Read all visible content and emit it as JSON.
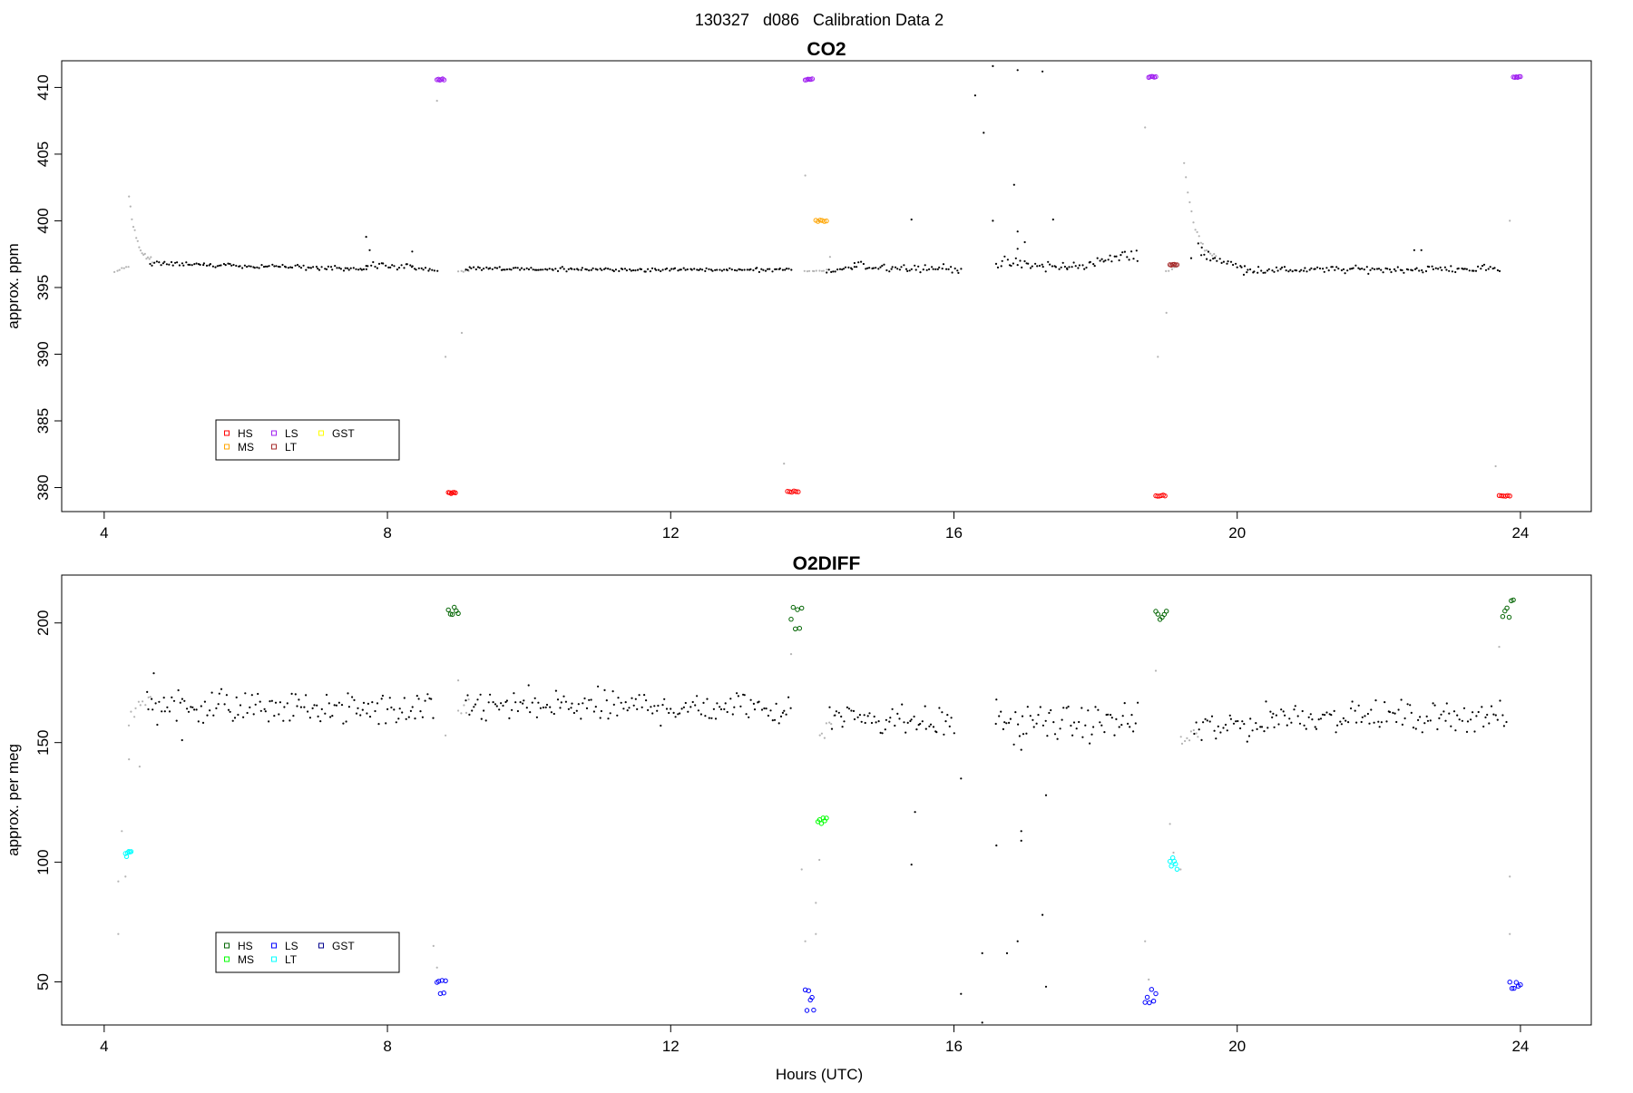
{
  "figure": {
    "title": "130327   d086   Calibration Data 2",
    "xlabel": "Hours (UTC)"
  },
  "chart_data": [
    {
      "type": "scatter",
      "title": "CO2",
      "ylabel": "approx. ppm",
      "xlabel": "",
      "xlim": [
        3.4,
        25.0
      ],
      "ylim": [
        378.2,
        412.0
      ],
      "xticks": [
        4,
        8,
        12,
        16,
        20,
        24
      ],
      "yticks": [
        380,
        385,
        390,
        395,
        400,
        405,
        410
      ],
      "grid": false,
      "legend": {
        "placement": "bottom-left",
        "entries": [
          {
            "label": "HS",
            "color": "#ff0000"
          },
          {
            "label": "MS",
            "color": "#ffa500"
          },
          {
            "label": "LS",
            "color": "#a020f0"
          },
          {
            "label": "LT",
            "color": "#a52a2a"
          },
          {
            "label": "GST",
            "color": "#ffff00"
          }
        ]
      },
      "ambient": {
        "color": "#000000",
        "segments": [
          [
            4.65,
            7.7,
            396.8,
            396.4,
            0.18
          ],
          [
            7.7,
            8.35,
            396.7,
            396.5,
            0.25
          ],
          [
            8.35,
            8.7,
            396.5,
            396.3,
            0.15
          ],
          [
            9.1,
            13.7,
            396.4,
            396.3,
            0.15
          ],
          [
            14.2,
            14.6,
            396.2,
            396.5,
            0.2
          ],
          [
            14.6,
            16.1,
            396.6,
            396.4,
            0.3
          ],
          [
            16.6,
            17.6,
            396.8,
            396.5,
            0.45
          ],
          [
            17.6,
            18.6,
            396.5,
            397.5,
            0.4
          ],
          [
            19.5,
            20.1,
            397.5,
            396.4,
            0.4
          ],
          [
            20.1,
            23.7,
            396.3,
            396.4,
            0.25
          ]
        ],
        "outliers": [
          [
            7.7,
            398.8
          ],
          [
            7.75,
            397.8
          ],
          [
            8.35,
            397.7
          ],
          [
            15.4,
            400.1
          ],
          [
            16.3,
            409.4
          ],
          [
            16.42,
            406.6
          ],
          [
            16.55,
            411.6
          ],
          [
            16.9,
            411.3
          ],
          [
            17.25,
            411.2
          ],
          [
            16.85,
            402.7
          ],
          [
            16.55,
            400.0
          ],
          [
            16.9,
            399.2
          ],
          [
            17.0,
            398.4
          ],
          [
            17.4,
            400.1
          ],
          [
            16.9,
            397.9
          ],
          [
            22.5,
            397.8
          ],
          [
            22.6,
            397.8
          ],
          [
            19.45,
            398.3
          ],
          [
            19.5,
            398.0
          ],
          [
            19.35,
            397.2
          ]
        ]
      },
      "transition": {
        "color": "#b4b4b4",
        "segments": [
          [
            4.15,
            4.35,
            396.2,
            396.6,
            0.1
          ],
          [
            9.0,
            9.15,
            396.2,
            396.3,
            0.1
          ],
          [
            13.9,
            14.2,
            396.2,
            396.3,
            0.1
          ],
          [
            19.0,
            19.15,
            396.2,
            396.6,
            0.1
          ]
        ],
        "decays": [
          [
            4.35,
            4.7,
            401.8,
            396.8
          ],
          [
            19.25,
            19.7,
            404.5,
            397.0
          ]
        ],
        "outliers": [
          [
            8.7,
            409.0
          ],
          [
            8.82,
            389.8
          ],
          [
            9.05,
            391.6
          ],
          [
            13.6,
            381.8
          ],
          [
            13.9,
            403.4
          ],
          [
            14.1,
            400.0
          ],
          [
            14.25,
            397.3
          ],
          [
            18.7,
            407.0
          ],
          [
            18.88,
            389.8
          ],
          [
            19.0,
            393.1
          ],
          [
            23.65,
            381.6
          ],
          [
            23.85,
            400.0
          ]
        ]
      },
      "calibrations": [
        {
          "tank": "LS",
          "x": [
            8.7,
            8.8
          ],
          "y": 410.6
        },
        {
          "tank": "HS",
          "x": [
            8.86,
            8.96
          ],
          "y": 379.6
        },
        {
          "tank": "HS",
          "x": [
            13.65,
            13.8
          ],
          "y": 379.7
        },
        {
          "tank": "LS",
          "x": [
            13.9,
            14.0
          ],
          "y": 410.6
        },
        {
          "tank": "MS",
          "x": [
            14.05,
            14.2
          ],
          "y": 400.0
        },
        {
          "tank": "LS",
          "x": [
            18.75,
            18.85
          ],
          "y": 410.8
        },
        {
          "tank": "HS",
          "x": [
            18.85,
            18.98
          ],
          "y": 379.4
        },
        {
          "tank": "LT",
          "x": [
            19.05,
            19.15
          ],
          "y": 396.7
        },
        {
          "tank": "HS",
          "x": [
            23.7,
            23.85
          ],
          "y": 379.4
        },
        {
          "tank": "LS",
          "x": [
            23.9,
            24.0
          ],
          "y": 410.8
        }
      ]
    },
    {
      "type": "scatter",
      "title": "O2DIFF",
      "ylabel": "approx. per meg",
      "xlabel": "Hours (UTC)",
      "xlim": [
        3.4,
        25.0
      ],
      "ylim": [
        32,
        220
      ],
      "xticks": [
        4,
        8,
        12,
        16,
        20,
        24
      ],
      "yticks": [
        50,
        100,
        150,
        200
      ],
      "grid": false,
      "legend": {
        "placement": "bottom-left",
        "entries": [
          {
            "label": "HS",
            "color": "#006400"
          },
          {
            "label": "MS",
            "color": "#00ff00"
          },
          {
            "label": "LS",
            "color": "#0000ff"
          },
          {
            "label": "LT",
            "color": "#00ffff"
          },
          {
            "label": "GST",
            "color": "#00008b"
          }
        ]
      },
      "ambient": {
        "color": "#000000",
        "segments": [
          [
            4.6,
            8.65,
            166,
            163,
            7
          ],
          [
            9.1,
            13.7,
            165,
            165,
            7
          ],
          [
            14.25,
            16.0,
            162,
            158,
            7
          ],
          [
            16.6,
            18.6,
            158,
            158,
            7
          ],
          [
            19.4,
            20.5,
            155,
            159,
            7
          ],
          [
            20.5,
            23.8,
            161,
            161,
            6
          ]
        ],
        "outliers": [
          [
            4.7,
            179
          ],
          [
            5.1,
            151
          ],
          [
            15.45,
            121
          ],
          [
            15.4,
            99
          ],
          [
            16.1,
            135
          ],
          [
            16.1,
            45
          ],
          [
            16.4,
            62
          ],
          [
            16.4,
            33
          ],
          [
            16.6,
            107
          ],
          [
            16.75,
            62
          ],
          [
            16.9,
            67
          ],
          [
            16.95,
            113
          ],
          [
            16.95,
            109
          ],
          [
            17.25,
            78
          ],
          [
            17.3,
            128
          ],
          [
            17.3,
            48
          ],
          [
            16.6,
            168
          ],
          [
            16.95,
            147
          ]
        ]
      },
      "transition": {
        "color": "#b4b4b4",
        "segments": [
          [
            4.35,
            4.65,
            160,
            168,
            4
          ],
          [
            9.0,
            9.15,
            163,
            166,
            3
          ],
          [
            14.1,
            14.3,
            152,
            160,
            4
          ],
          [
            19.2,
            19.45,
            150,
            156,
            4
          ]
        ],
        "decays": [],
        "outliers": [
          [
            4.2,
            70
          ],
          [
            4.2,
            92
          ],
          [
            4.25,
            113
          ],
          [
            4.3,
            94
          ],
          [
            4.35,
            143
          ],
          [
            4.5,
            140
          ],
          [
            8.65,
            65
          ],
          [
            8.7,
            56
          ],
          [
            8.82,
            153
          ],
          [
            9.0,
            176
          ],
          [
            13.7,
            187
          ],
          [
            13.85,
            97
          ],
          [
            13.9,
            67
          ],
          [
            14.05,
            70
          ],
          [
            14.05,
            83
          ],
          [
            14.1,
            101
          ],
          [
            18.7,
            67
          ],
          [
            18.75,
            51
          ],
          [
            18.85,
            180
          ],
          [
            19.05,
            116
          ],
          [
            19.1,
            104
          ],
          [
            19.2,
            97
          ],
          [
            23.7,
            190
          ],
          [
            23.85,
            94
          ],
          [
            23.85,
            70
          ]
        ]
      },
      "calibrations": [
        {
          "tank": "LT",
          "x": [
            4.3,
            4.38
          ],
          "y": 103,
          "spread": 2
        },
        {
          "tank": "LS",
          "x": [
            8.7,
            8.82
          ],
          "y": 48,
          "spread": 4
        },
        {
          "tank": "HS",
          "x": [
            8.86,
            9.0
          ],
          "y": 205,
          "spread": 2
        },
        {
          "tank": "HS",
          "x": [
            13.7,
            13.85
          ],
          "y": 202,
          "spread": 5
        },
        {
          "tank": "LS",
          "x": [
            13.9,
            14.02
          ],
          "y": 44,
          "spread": 6
        },
        {
          "tank": "MS",
          "x": [
            14.08,
            14.2
          ],
          "y": 117,
          "spread": 2
        },
        {
          "tank": "LS",
          "x": [
            18.7,
            18.85
          ],
          "y": 44,
          "spread": 3
        },
        {
          "tank": "HS",
          "x": [
            18.85,
            19.0
          ],
          "y": 204,
          "spread": 3
        },
        {
          "tank": "LT",
          "x": [
            19.05,
            19.15
          ],
          "y": 99,
          "spread": 3
        },
        {
          "tank": "HS",
          "x": [
            23.75,
            23.9
          ],
          "y": 206,
          "spread": 4
        },
        {
          "tank": "LS",
          "x": [
            23.85,
            24.0
          ],
          "y": 48,
          "spread": 2
        }
      ]
    }
  ]
}
